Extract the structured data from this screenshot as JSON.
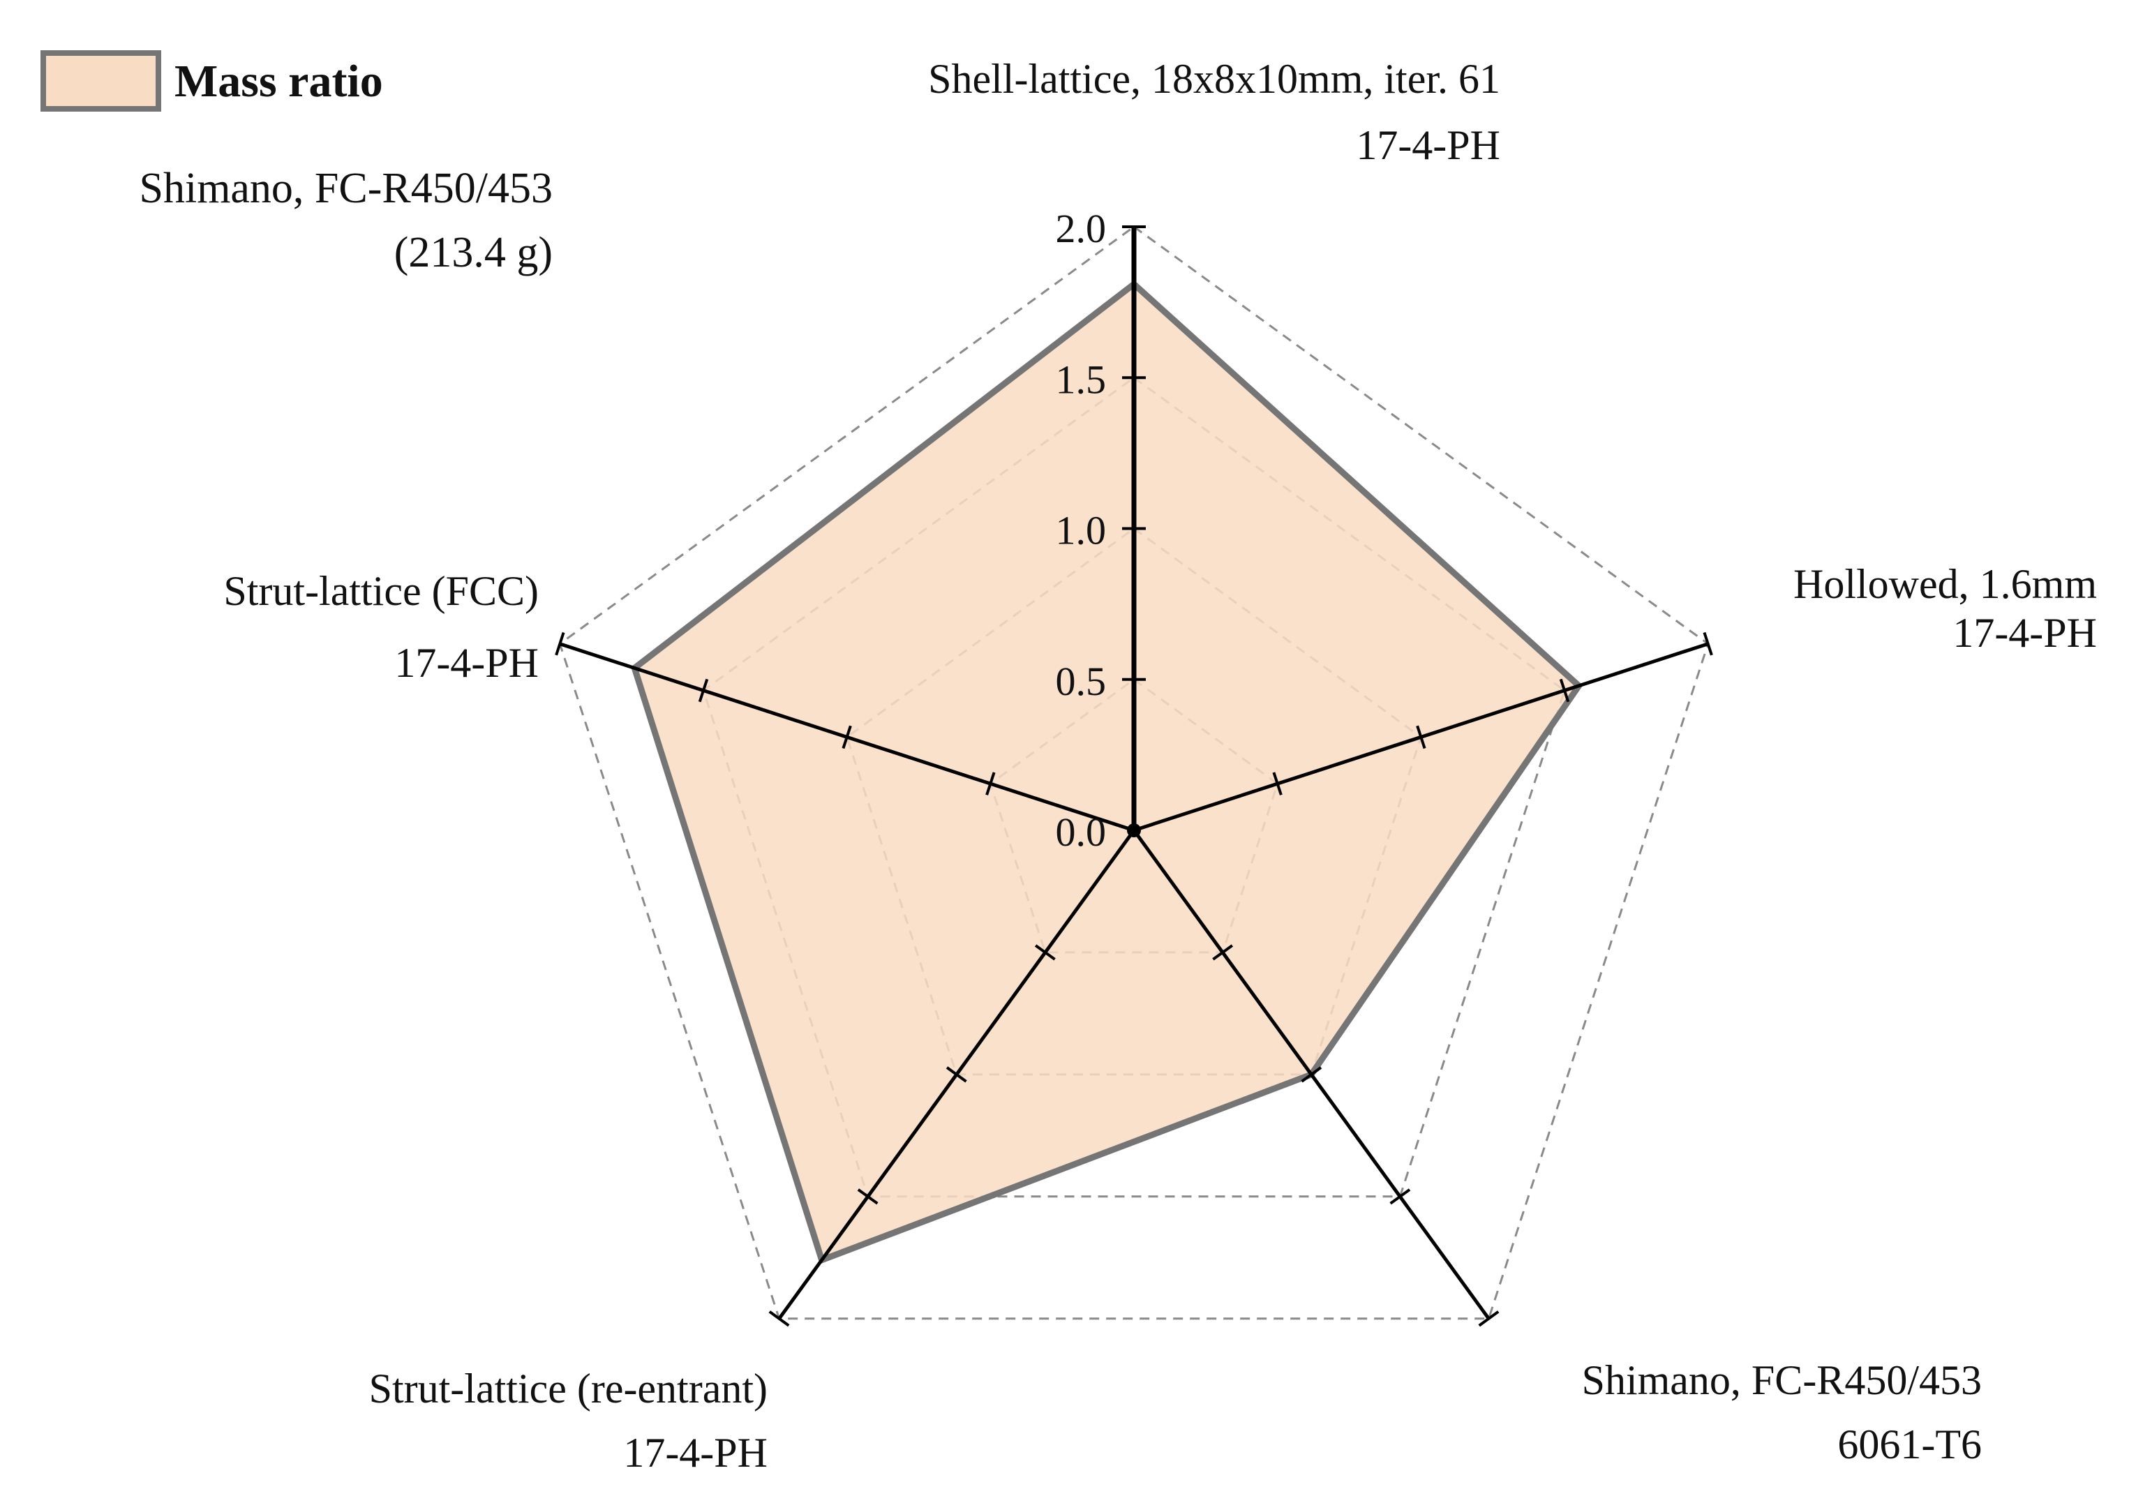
{
  "chart_data": {
    "type": "radar",
    "legend": {
      "label": "Mass ratio",
      "placement": "top-left"
    },
    "reference_note": [
      "Shimano, FC-R450/453",
      "(213.4 g)"
    ],
    "axes": [
      {
        "line1": "Shell-lattice, 18x8x10mm, iter. 61",
        "line2": "17-4-PH"
      },
      {
        "line1": "Hollowed, 1.6mm",
        "line2": "17-4-PH"
      },
      {
        "line1": "Shimano, FC-R450/453",
        "line2": "6061-T6"
      },
      {
        "line1": "Strut-lattice (re-entrant)",
        "line2": "17-4-PH"
      },
      {
        "line1": "Strut-lattice (FCC)",
        "line2": "17-4-PH"
      }
    ],
    "series": [
      {
        "name": "Mass ratio",
        "values": [
          1.81,
          1.55,
          1.0,
          1.76,
          1.74
        ]
      }
    ],
    "rlim": [
      0,
      2.0
    ],
    "ticks": [
      "0.0",
      "0.5",
      "1.0",
      "1.5",
      "2.0"
    ],
    "tick_values": [
      0,
      0.5,
      1.0,
      1.5,
      2.0
    ],
    "grid": true,
    "colors": {
      "fill": "#f9dcc4",
      "stroke": "#757575",
      "axis": "#000000",
      "grid": "#8a8a8a"
    }
  }
}
